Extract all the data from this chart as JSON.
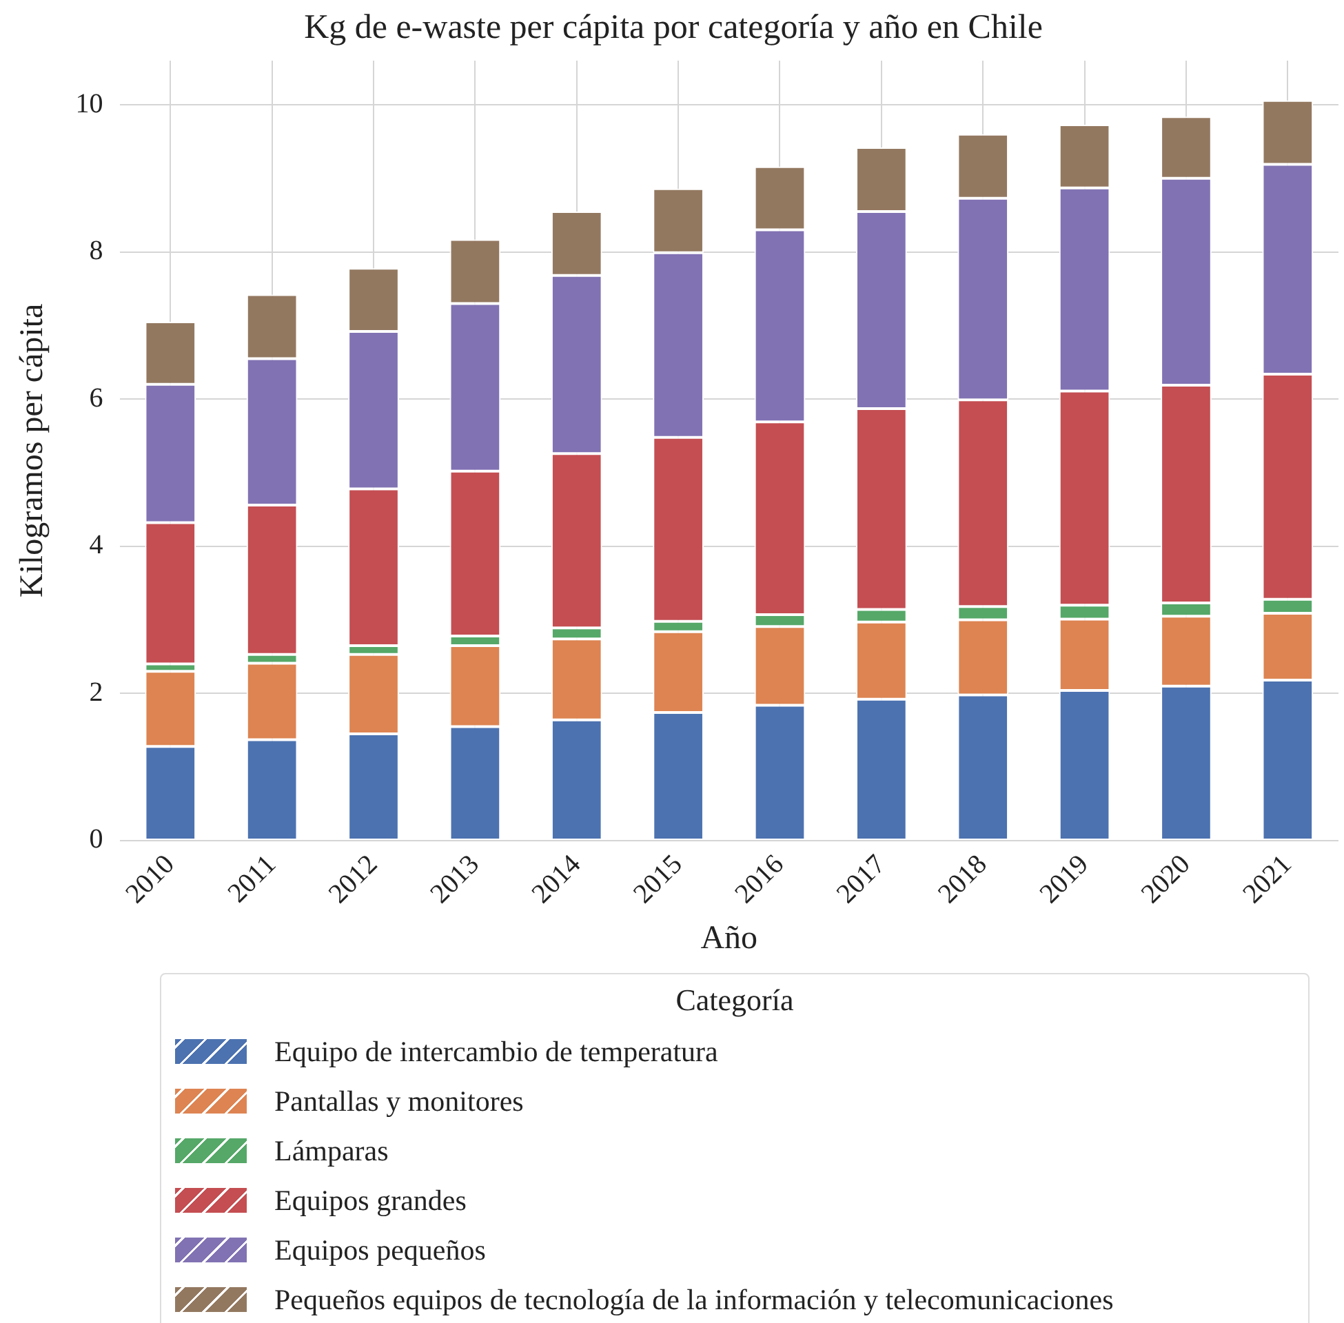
{
  "chart_data": {
    "type": "bar",
    "title": "Kg de e-waste per cápita por categoría y año en Chile",
    "xlabel": "Año",
    "ylabel": "Kilogramos per cápita",
    "legend_title": "Categoría",
    "categories": [
      "2010",
      "2011",
      "2012",
      "2013",
      "2014",
      "2015",
      "2016",
      "2017",
      "2018",
      "2019",
      "2020",
      "2021"
    ],
    "series": [
      {
        "name": "Equipo de intercambio de temperatura",
        "color": "#4c72b0",
        "values": [
          1.28,
          1.37,
          1.45,
          1.55,
          1.64,
          1.74,
          1.84,
          1.92,
          1.98,
          2.04,
          2.1,
          2.18
        ]
      },
      {
        "name": "Pantallas y monitores",
        "color": "#dd8452",
        "values": [
          1.02,
          1.04,
          1.08,
          1.1,
          1.1,
          1.1,
          1.07,
          1.05,
          1.02,
          0.97,
          0.95,
          0.91
        ]
      },
      {
        "name": "Lámparas",
        "color": "#55a868",
        "values": [
          0.1,
          0.12,
          0.12,
          0.13,
          0.15,
          0.14,
          0.16,
          0.17,
          0.18,
          0.19,
          0.18,
          0.19
        ]
      },
      {
        "name": "Equipos grandes",
        "color": "#c44e52",
        "values": [
          1.92,
          2.03,
          2.13,
          2.24,
          2.37,
          2.5,
          2.62,
          2.73,
          2.81,
          2.91,
          2.96,
          3.06
        ]
      },
      {
        "name": "Equipos pequeños",
        "color": "#8172b3",
        "values": [
          1.88,
          1.99,
          2.14,
          2.28,
          2.42,
          2.51,
          2.61,
          2.68,
          2.74,
          2.76,
          2.81,
          2.85
        ]
      },
      {
        "name": "Pequeños equipos de tecnología de la información y telecomunicaciones",
        "color": "#937860",
        "values": [
          0.85,
          0.87,
          0.86,
          0.87,
          0.87,
          0.87,
          0.86,
          0.87,
          0.87,
          0.86,
          0.84,
          0.87
        ]
      }
    ],
    "stacked": true,
    "ylim": [
      0,
      10.6
    ],
    "yticks": [
      0,
      2,
      4,
      6,
      8,
      10
    ],
    "grid": true,
    "legend": "bottom"
  }
}
